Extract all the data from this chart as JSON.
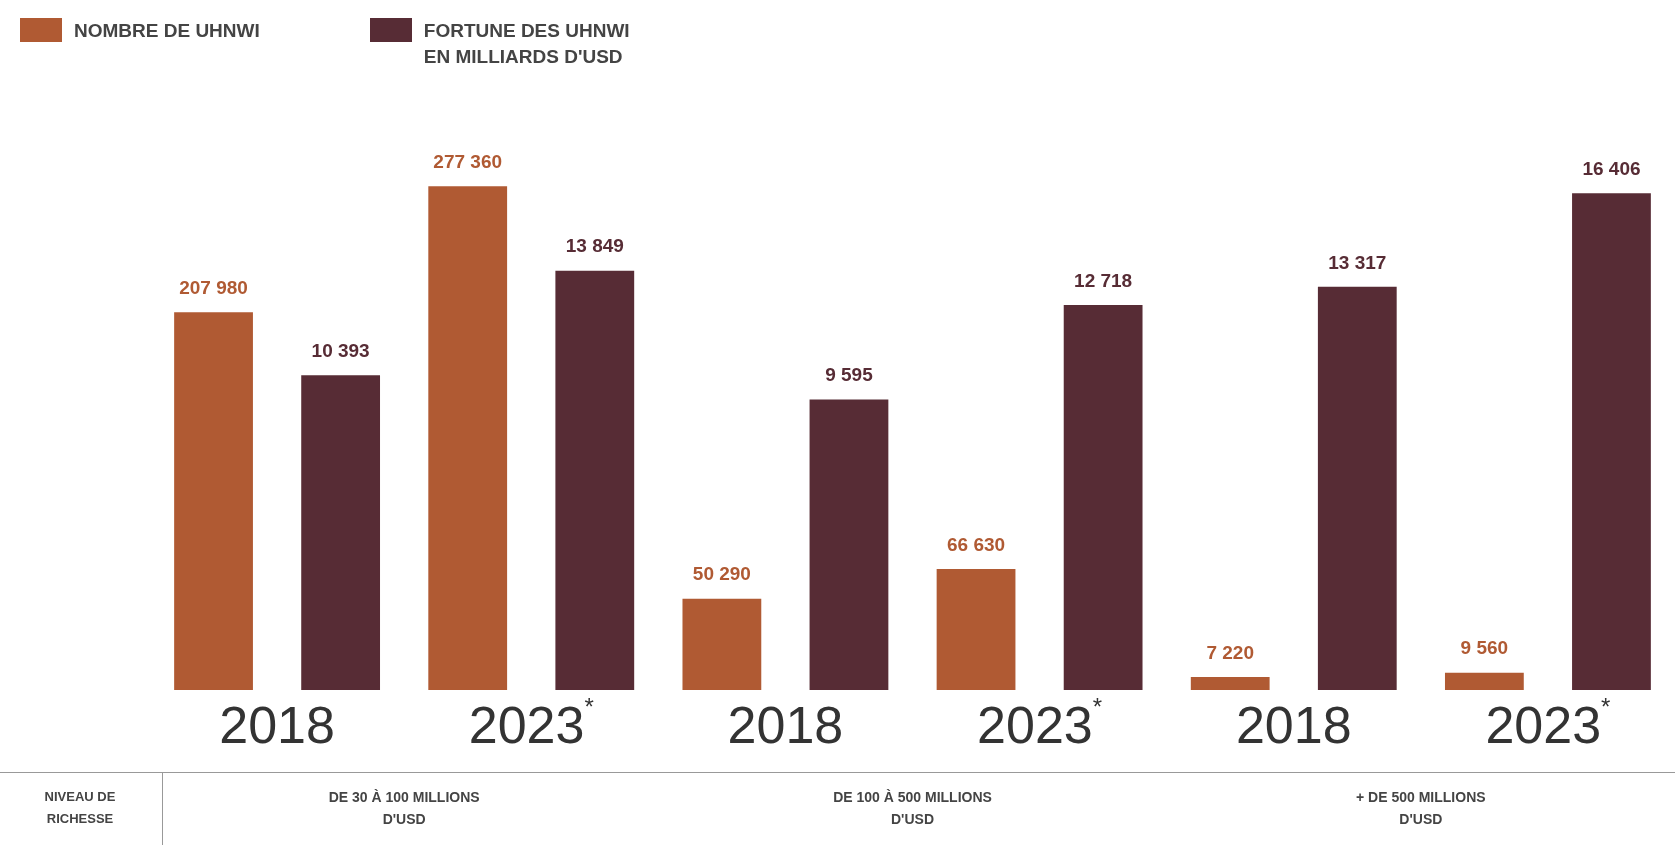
{
  "chart_data": {
    "type": "bar",
    "categories": [
      "2018",
      "2023$^{*}$",
      "2018",
      "2023$^{*}$",
      "2018",
      "2023$^{*}$"
    ],
    "series": [
      {
        "name": "NOMBRE DE UHNWI",
        "color": "#b05a33",
        "values": [
          207980,
          277360,
          50290,
          66630,
          7220,
          9560
        ],
        "value_labels": [
          "207 980",
          "277 360",
          "50 290",
          "66 630",
          "7 220",
          "9 560"
        ]
      },
      {
        "name": "FORTUNE DES UHNWI EN MILLIARDS D'USD",
        "color": "#572c35",
        "axis": "y2",
        "values": [
          10393,
          13849,
          9595,
          12718,
          13317,
          16406
        ],
        "value_labels": [
          "10 393",
          "13 849",
          "9 595",
          "12 718",
          "13 317",
          "16 406"
        ]
      }
    ],
    "annotations": [
      "NIVEAU DE RICHESSE",
      "DE 30 À 100 MILLIONS D'USD",
      "DE 100 À 500 MILLIONS D'USD",
      "+ DE 500 MILLIONS D'USD"
    ],
    "legend": "top left"
  }
}
